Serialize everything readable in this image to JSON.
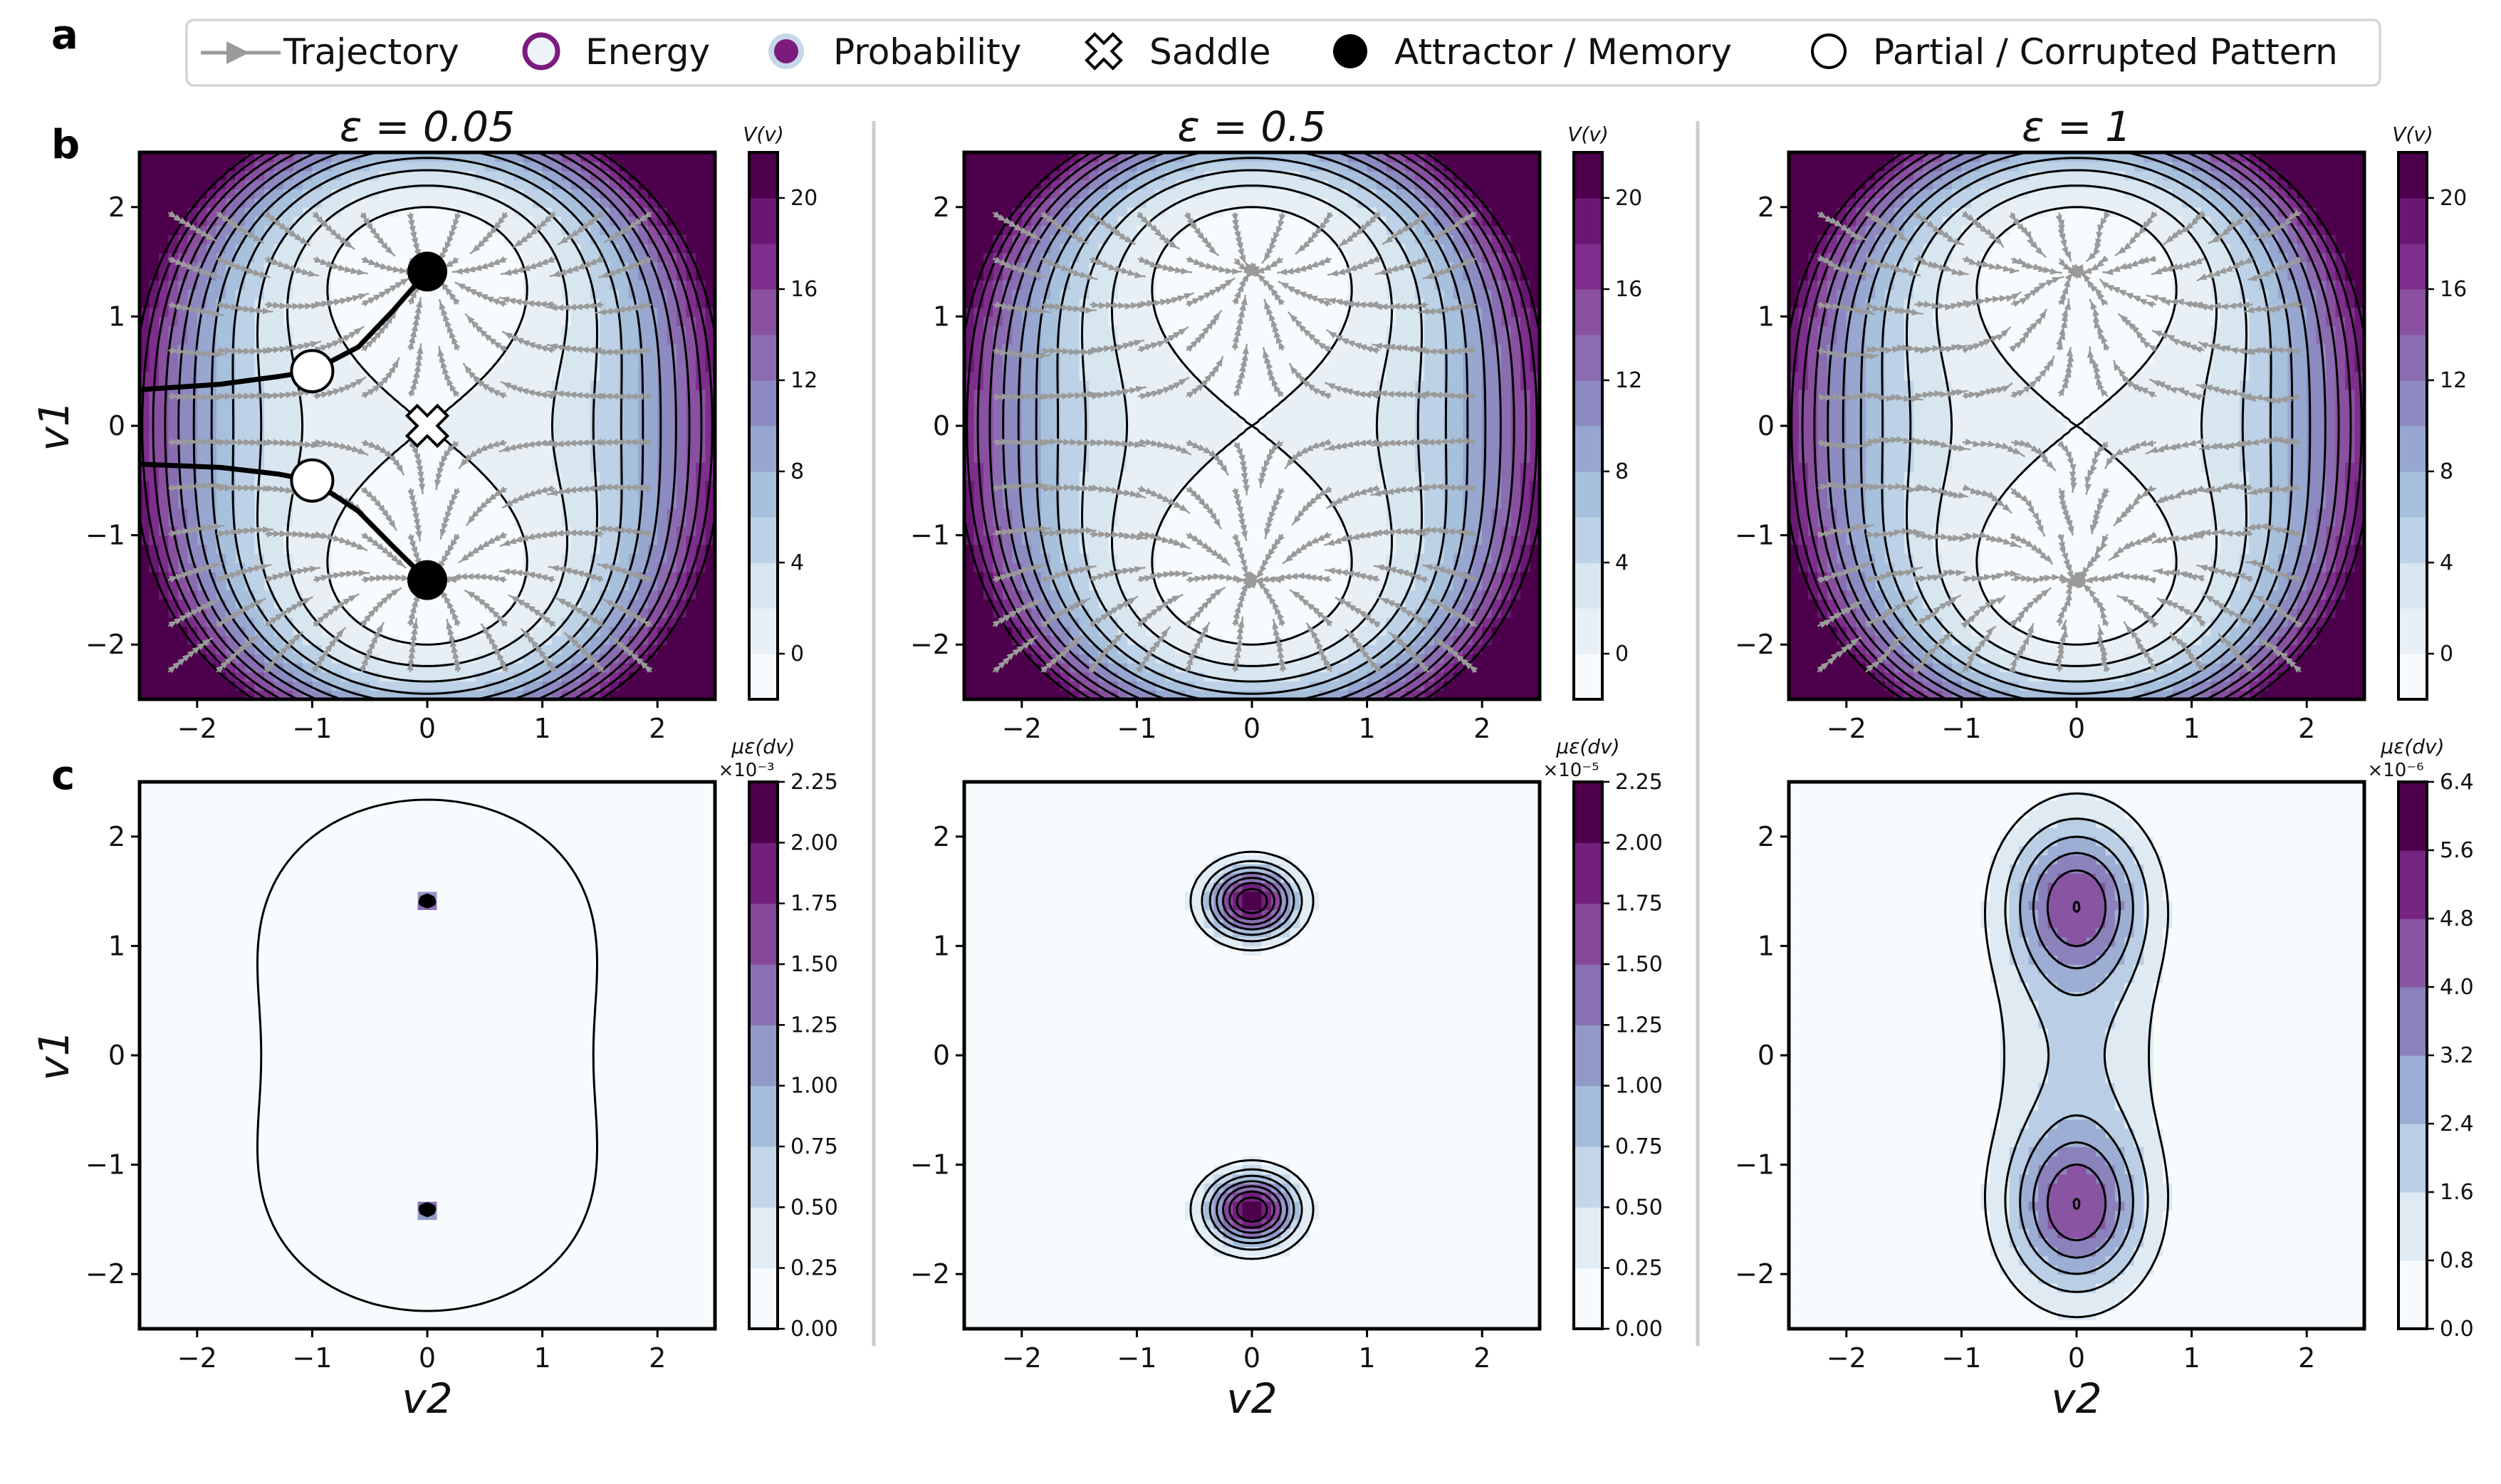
{
  "panel_letters": [
    "a",
    "b",
    "c"
  ],
  "legend": {
    "items": [
      {
        "label": "Trajectory",
        "icon": "arrow-line-icon"
      },
      {
        "label": "Energy",
        "icon": "energy-ring-icon"
      },
      {
        "label": "Probability",
        "icon": "probability-dot-icon"
      },
      {
        "label": "Saddle",
        "icon": "saddle-cross-icon"
      },
      {
        "label": "Attractor / Memory",
        "icon": "attractor-dot-icon"
      },
      {
        "label": "Partial / Corrupted Pattern",
        "icon": "pattern-circle-icon"
      }
    ]
  },
  "colors": {
    "cmap": [
      "#f7fbfd",
      "#e8f0f6",
      "#d8e6f0",
      "#bdd2e6",
      "#a7c0dc",
      "#97a7d0",
      "#8c8ac0",
      "#8a6db1",
      "#89509f",
      "#7e2e8c",
      "#6a1773",
      "#4d004b"
    ],
    "trajectory": "#000000",
    "streamline": "#9a9a9a",
    "energy_ring": "#7b1b7e",
    "probability_dot": "#7b1b7e",
    "separator": "#cccccc"
  },
  "chart_data": [
    {
      "type": "heatmap",
      "panel": "b",
      "title": "ε = 0.05",
      "xlabel": "",
      "ylabel": "v1",
      "xlim": [
        -2.5,
        2.5
      ],
      "ylim": [
        -2.5,
        2.5
      ],
      "xticks": [
        "−2",
        "−1",
        "0",
        "1",
        "2"
      ],
      "yticks": [
        "−2",
        "−1",
        "0",
        "1",
        "2"
      ],
      "colorbar": {
        "label": "V(v)",
        "range": [
          -2,
          22
        ],
        "ticks": [
          "0",
          "4",
          "8",
          "12",
          "16",
          "20"
        ],
        "levels": 12,
        "exponent": ""
      },
      "attractors": [
        [
          0,
          1.41
        ],
        [
          0,
          -1.41
        ]
      ],
      "saddle": [
        0,
        0
      ],
      "partial_patterns": [
        [
          -1.0,
          0.5
        ],
        [
          -1.0,
          -0.5
        ]
      ],
      "trajectories": [
        [
          [
            -2.5,
            0.33
          ],
          [
            -1.8,
            0.38
          ],
          [
            -1.3,
            0.45
          ],
          [
            -1.0,
            0.5
          ],
          [
            -0.6,
            0.72
          ],
          [
            -0.3,
            1.05
          ],
          [
            0,
            1.41
          ]
        ],
        [
          [
            -2.5,
            -0.35
          ],
          [
            -1.8,
            -0.38
          ],
          [
            -1.3,
            -0.44
          ],
          [
            -1.0,
            -0.5
          ],
          [
            -0.6,
            -0.78
          ],
          [
            -0.3,
            -1.1
          ],
          [
            0,
            -1.41
          ]
        ]
      ],
      "streamlines": true
    },
    {
      "type": "heatmap",
      "panel": "b",
      "title": "ε = 0.5",
      "xlabel": "",
      "ylabel": "",
      "xlim": [
        -2.5,
        2.5
      ],
      "ylim": [
        -2.5,
        2.5
      ],
      "xticks": [
        "−2",
        "−1",
        "0",
        "1",
        "2"
      ],
      "yticks": [
        "−2",
        "−1",
        "0",
        "1",
        "2"
      ],
      "colorbar": {
        "label": "V(v)",
        "range": [
          -2,
          22
        ],
        "ticks": [
          "0",
          "4",
          "8",
          "12",
          "16",
          "20"
        ],
        "levels": 12,
        "exponent": ""
      },
      "streamlines": true
    },
    {
      "type": "heatmap",
      "panel": "b",
      "title": "ε = 1",
      "xlabel": "",
      "ylabel": "",
      "xlim": [
        -2.5,
        2.5
      ],
      "ylim": [
        -2.5,
        2.5
      ],
      "xticks": [
        "−2",
        "−1",
        "0",
        "1",
        "2"
      ],
      "yticks": [
        "−2",
        "−1",
        "0",
        "1",
        "2"
      ],
      "colorbar": {
        "label": "V(v)",
        "range": [
          -2,
          22
        ],
        "ticks": [
          "0",
          "4",
          "8",
          "12",
          "16",
          "20"
        ],
        "levels": 12,
        "exponent": ""
      },
      "streamlines": true
    },
    {
      "type": "heatmap",
      "panel": "c",
      "title": "",
      "xlabel": "v2",
      "ylabel": "v1",
      "xlim": [
        -2.5,
        2.5
      ],
      "ylim": [
        -2.5,
        2.5
      ],
      "xticks": [
        "−2",
        "−1",
        "0",
        "1",
        "2"
      ],
      "yticks": [
        "−2",
        "−1",
        "0",
        "1",
        "2"
      ],
      "colorbar": {
        "label": "με(dv)",
        "range": [
          0,
          2.25
        ],
        "ticks": [
          "0.00",
          "0.25",
          "0.50",
          "0.75",
          "1.00",
          "1.25",
          "1.50",
          "1.75",
          "2.00",
          "2.25"
        ],
        "levels": 9,
        "exponent": "×10⁻³"
      },
      "epsilon": 0.05
    },
    {
      "type": "heatmap",
      "panel": "c",
      "title": "",
      "xlabel": "v2",
      "ylabel": "",
      "xlim": [
        -2.5,
        2.5
      ],
      "ylim": [
        -2.5,
        2.5
      ],
      "xticks": [
        "−2",
        "−1",
        "0",
        "1",
        "2"
      ],
      "yticks": [
        "−2",
        "−1",
        "0",
        "1",
        "2"
      ],
      "colorbar": {
        "label": "με(dv)",
        "range": [
          0,
          2.25
        ],
        "ticks": [
          "0.00",
          "0.25",
          "0.50",
          "0.75",
          "1.00",
          "1.25",
          "1.50",
          "1.75",
          "2.00",
          "2.25"
        ],
        "levels": 9,
        "exponent": "×10⁻⁵"
      },
      "epsilon": 0.5
    },
    {
      "type": "heatmap",
      "panel": "c",
      "title": "",
      "xlabel": "v2",
      "ylabel": "",
      "xlim": [
        -2.5,
        2.5
      ],
      "ylim": [
        -2.5,
        2.5
      ],
      "xticks": [
        "−2",
        "−1",
        "0",
        "1",
        "2"
      ],
      "yticks": [
        "−2",
        "−1",
        "0",
        "1",
        "2"
      ],
      "colorbar": {
        "label": "με(dv)",
        "range": [
          0,
          6.4
        ],
        "ticks": [
          "0.0",
          "0.8",
          "1.6",
          "2.4",
          "3.2",
          "4.0",
          "4.8",
          "5.6",
          "6.4"
        ],
        "levels": 8,
        "exponent": "×10⁻⁶"
      },
      "epsilon": 1.0
    }
  ]
}
